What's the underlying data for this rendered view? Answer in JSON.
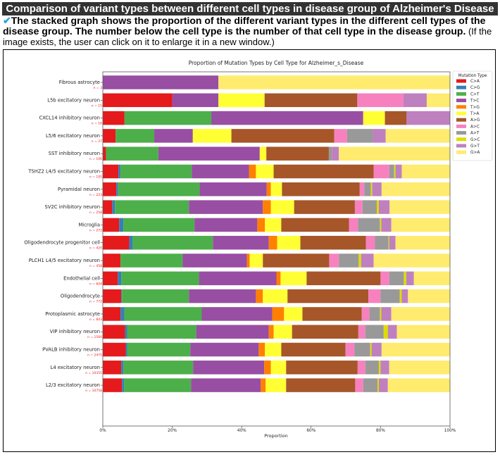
{
  "header": {
    "title": "Comparison of variant types between different cell types in disease group of Alzheimer's Disease",
    "check_icon": "✔",
    "description_bold": "The stacked graph shows the proportion of the different variant types in the different cell types of the disease group. The number below the cell type is the number of that cell type in the disease group.",
    "description_note": " (If the image exists, the user can click on it to enlarge it in a new window.)"
  },
  "chart_data": {
    "type": "bar",
    "orientation": "horizontal",
    "stacked": true,
    "title": "Proportion of Mutation Types by Cell Type for Alzheimer_s_Disease",
    "xlabel": "Proportion",
    "ylabel": "",
    "xlim": [
      0,
      1
    ],
    "xticks": [
      "0%",
      "20%",
      "40%",
      "60%",
      "80%",
      "100%"
    ],
    "legend_title": "Mutation Type",
    "legend_position": "right",
    "series_names": [
      "C>A",
      "C>G",
      "C>T",
      "T>C",
      "T>G",
      "T>A",
      "A>G",
      "A>C",
      "A>T",
      "G>C",
      "G>T",
      "G>A"
    ],
    "series_colors": [
      "#e41a1c",
      "#377eb8",
      "#4daf4a",
      "#984ea3",
      "#ff7f00",
      "#ffff33",
      "#a65628",
      "#f781bf",
      "#999999",
      "#dddd00",
      "#bf80bf",
      "#ffeb6e"
    ],
    "categories": [
      {
        "label": "Fibrous astrocyte",
        "n": "n = 3",
        "values": [
          0,
          0,
          0,
          33.3,
          0,
          0,
          0,
          0,
          0,
          0,
          0,
          66.7
        ]
      },
      {
        "label": "L5b excitatory neuron",
        "n": "n = 15",
        "values": [
          20.0,
          0,
          0,
          13.3,
          0,
          13.3,
          26.7,
          13.3,
          0,
          0,
          6.7,
          6.7
        ]
      },
      {
        "label": "CXCL14 inhibitory neuron",
        "n": "n = 16",
        "values": [
          6.25,
          0,
          25.0,
          43.75,
          0,
          6.25,
          6.25,
          0,
          0,
          0,
          12.5,
          0
        ]
      },
      {
        "label": "L5/6 excitatory neuron",
        "n": "n = 27",
        "values": [
          3.7,
          0,
          11.1,
          11.1,
          0,
          11.1,
          29.6,
          3.7,
          7.4,
          0,
          3.7,
          18.5
        ]
      },
      {
        "label": "SST inhibitory neuron",
        "n": "n = 106",
        "values": [
          0.9,
          0,
          15.1,
          29.2,
          0,
          1.9,
          18.0,
          0,
          0.9,
          0,
          2.0,
          32.0
        ]
      },
      {
        "label": "TSHZ2 L4/5 excitatory neuron",
        "n": "n = 195",
        "values": [
          4.5,
          0.6,
          20.5,
          16.5,
          2.0,
          5.1,
          28.8,
          4.5,
          1.4,
          0.4,
          1.8,
          13.9
        ]
      },
      {
        "label": "Pyramidal neuron",
        "n": "n = 223",
        "values": [
          3.9,
          0.5,
          23.5,
          19.3,
          1.2,
          3.2,
          22.4,
          1.3,
          1.9,
          0.4,
          2.7,
          19.7
        ]
      },
      {
        "label": "SV2C inhibitory neuron",
        "n": "n = 258",
        "values": [
          2.7,
          0.8,
          21.3,
          21.3,
          2.3,
          6.7,
          17.5,
          2.2,
          4.1,
          0.6,
          3.1,
          17.4
        ]
      },
      {
        "label": "Microglia",
        "n": "n = 272",
        "values": [
          4.7,
          1.2,
          20.5,
          18.1,
          2.2,
          4.7,
          19.5,
          2.6,
          6.3,
          0.4,
          2.9,
          16.9
        ]
      },
      {
        "label": "Oligodendrocyte progenitor cell",
        "n": "n = 420",
        "values": [
          7.6,
          1.0,
          23.1,
          16.1,
          2.4,
          6.7,
          18.9,
          2.6,
          3.9,
          0.2,
          1.8,
          15.7
        ]
      },
      {
        "label": "PLCH1 L4/5 excitatory neuron",
        "n": "n = 458",
        "values": [
          5.1,
          0,
          17.9,
          18.5,
          0.8,
          3.8,
          19.1,
          2.8,
          5.7,
          0.7,
          3.6,
          22.0
        ]
      },
      {
        "label": "Endothelial cell",
        "n": "n = 604",
        "values": [
          4.3,
          1.0,
          22.4,
          22.3,
          1.2,
          7.5,
          21.3,
          2.5,
          4.2,
          0.7,
          2.2,
          10.4
        ]
      },
      {
        "label": "Oligodendrocyte",
        "n": "n = 772",
        "values": [
          5.3,
          0.2,
          19.3,
          19.3,
          2.0,
          7.1,
          23.3,
          3.5,
          5.5,
          0.6,
          1.8,
          12.1
        ]
      },
      {
        "label": "Protoplasmic astrocyte",
        "n": "n = 843",
        "values": [
          5.1,
          1.1,
          22.3,
          20.3,
          3.4,
          5.3,
          17.1,
          2.2,
          3.0,
          0.4,
          2.9,
          16.9
        ]
      },
      {
        "label": "VIP inhibitory neuron",
        "n": "n = 1560",
        "values": [
          6.4,
          0.6,
          19.9,
          20.9,
          1.4,
          5.3,
          19.1,
          2.0,
          5.3,
          1.2,
          2.6,
          15.3
        ]
      },
      {
        "label": "PVALB inhibitory neuron",
        "n": "n = 2475",
        "values": [
          6.6,
          0.4,
          18.2,
          19.7,
          1.8,
          4.7,
          18.5,
          2.6,
          4.5,
          0.4,
          2.9,
          19.7
        ]
      },
      {
        "label": "L4 excitatory neuron",
        "n": "n = 10355",
        "values": [
          5.3,
          0.6,
          20.1,
          20.5,
          1.9,
          4.4,
          20.6,
          2.2,
          3.9,
          0.5,
          2.5,
          17.5
        ]
      },
      {
        "label": "L2/3 excitatory neuron",
        "n": "n = 10758",
        "values": [
          5.5,
          0.6,
          19.3,
          20.1,
          1.4,
          5.9,
          19.9,
          2.3,
          4.1,
          0.4,
          2.6,
          17.9
        ]
      }
    ]
  }
}
